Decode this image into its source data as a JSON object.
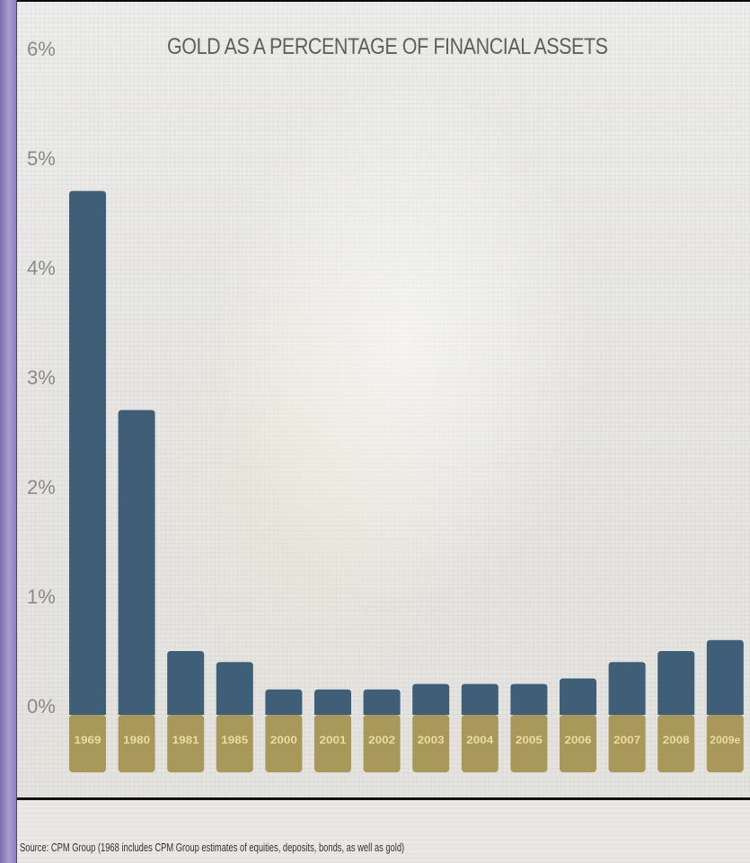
{
  "colors": {
    "bar": "#3f5f78",
    "label_band": "#a8995a",
    "tick_text": "#8a8a8a",
    "title_text": "#5f5f60"
  },
  "chart_data": {
    "type": "bar",
    "title": "GOLD AS A PERCENTAGE OF FINANCIAL ASSETS",
    "categories": [
      "1969",
      "1980",
      "1981",
      "1985",
      "2000",
      "2001",
      "2002",
      "2003",
      "2004",
      "2005",
      "2006",
      "2007",
      "2008",
      "2009e"
    ],
    "values": [
      4.7,
      2.7,
      0.5,
      0.4,
      0.15,
      0.15,
      0.15,
      0.2,
      0.2,
      0.2,
      0.25,
      0.4,
      0.5,
      0.6
    ],
    "yticks": [
      "0%",
      "1%",
      "2%",
      "3%",
      "4%",
      "5%",
      "6%"
    ],
    "ylim": [
      0,
      6
    ],
    "grid": false,
    "legend": "none",
    "source": "Source: CPM Group (1968 includes CPM Group estimates of equities, deposits, bonds, as well as gold)"
  }
}
